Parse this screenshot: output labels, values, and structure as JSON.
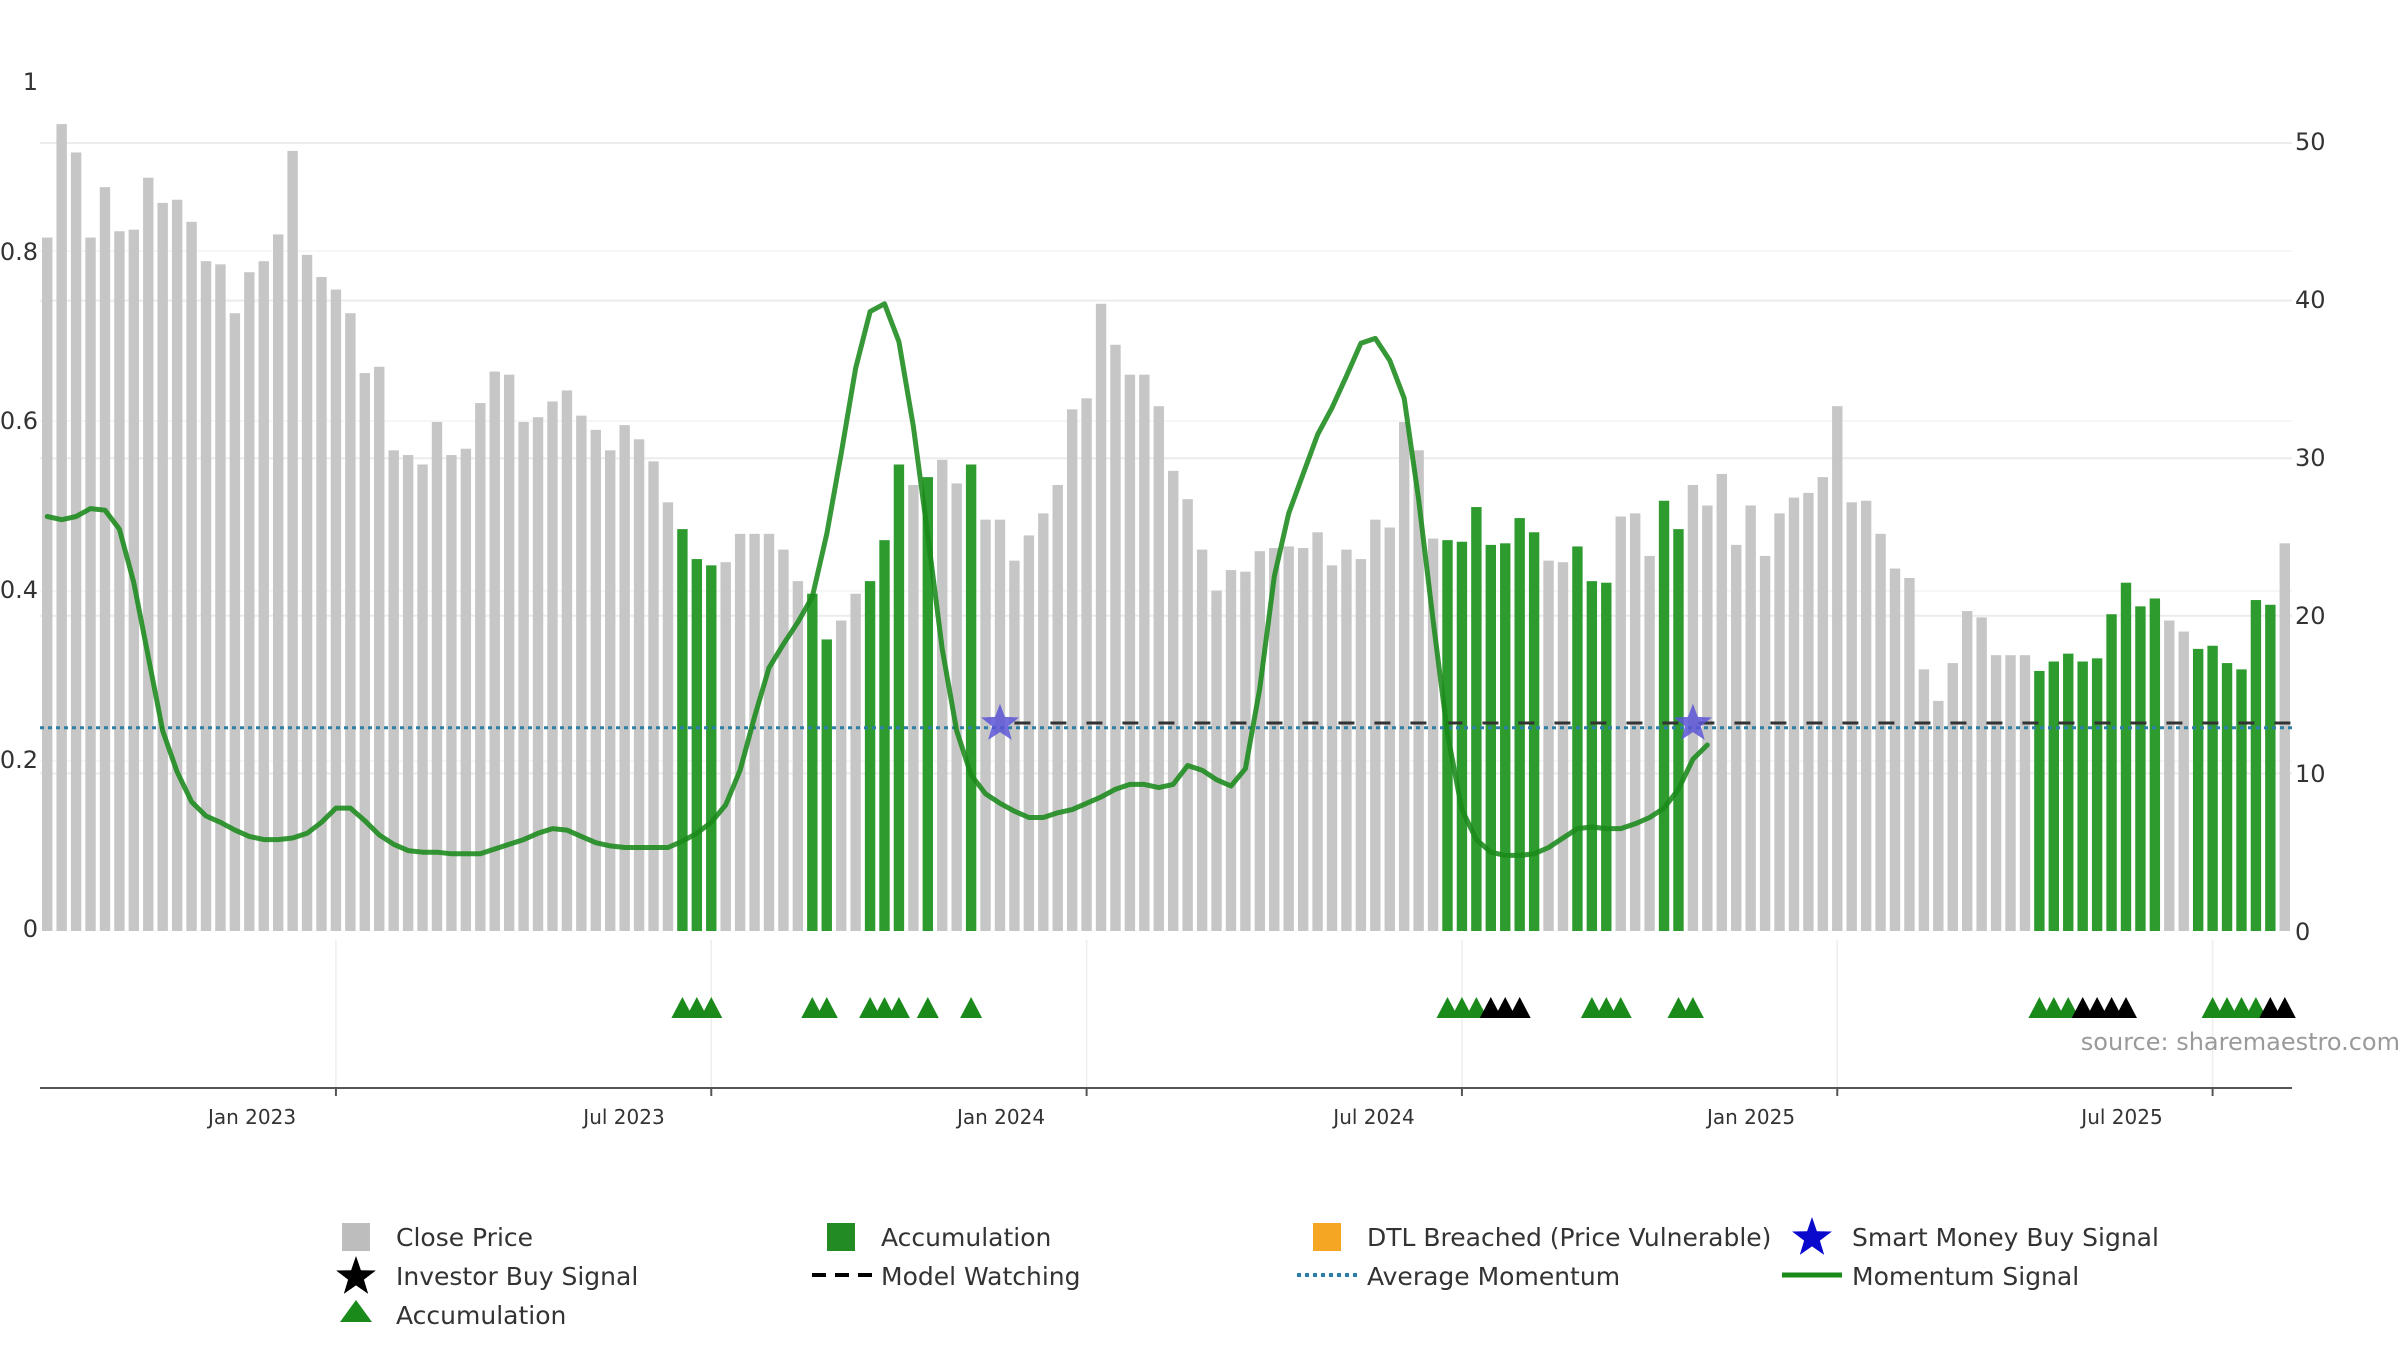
{
  "chart_data": {
    "type": "bar",
    "y_left_ticks": [
      "0",
      "0.2",
      "0.4",
      "0.6",
      "0.8",
      "1"
    ],
    "y_right_ticks": [
      "0",
      "10",
      "20",
      "30",
      "40",
      "50"
    ],
    "x_ticks": [
      "Jan 2023",
      "Jul 2023",
      "Jan 2024",
      "Jul 2024",
      "Jan 2025",
      "Jul 2025"
    ],
    "x_tick_weeks": [
      20,
      46,
      72,
      98,
      124,
      150
    ],
    "y_left_range": [
      0,
      1
    ],
    "y_right_range": [
      0,
      50
    ],
    "grid": true,
    "legend_position": "bottom",
    "source": "source: sharemaestro.com",
    "close_price": [
      44,
      51.2,
      49.4,
      44,
      47.2,
      44.4,
      44.5,
      47.8,
      46.2,
      46.4,
      45,
      42.5,
      42.3,
      39.2,
      41.8,
      42.5,
      44.2,
      49.5,
      42.9,
      41.5,
      40.7,
      39.2,
      35.4,
      35.8,
      30.5,
      30.2,
      29.6,
      32.3,
      30.2,
      30.6,
      33.5,
      35.5,
      35.3,
      32.3,
      32.6,
      33.6,
      34.3,
      32.7,
      31.8,
      30.5,
      32.1,
      31.2,
      29.8,
      27.2,
      25.5,
      23.6,
      23.2,
      23.4,
      25.2,
      25.2,
      25.2,
      24.2,
      22.2,
      21.4,
      18.5,
      19.7,
      21.4,
      22.2,
      24.8,
      29.6,
      28.3,
      28.8,
      29.9,
      28.4,
      29.6,
      26.1,
      26.1,
      23.5,
      25.1,
      26.5,
      28.3,
      33.1,
      33.8,
      39.8,
      37.2,
      35.3,
      35.3,
      33.3,
      29.2,
      27.4,
      24.2,
      21.6,
      22.9,
      22.8,
      24.1,
      24.3,
      24.4,
      24.3,
      25.3,
      23.2,
      24.2,
      23.6,
      26.1,
      25.6,
      32.3,
      30.5,
      24.9,
      24.8,
      24.7,
      26.9,
      24.5,
      24.6,
      26.2,
      25.3,
      23.5,
      23.4,
      24.4,
      22.2,
      22.1,
      26.3,
      26.5,
      23.8,
      27.3,
      25.5,
      28.3,
      27,
      29,
      24.5,
      27,
      23.8,
      26.5,
      27.5,
      27.8,
      28.8,
      33.3,
      27.2,
      27.3,
      25.2,
      23,
      22.4,
      16.6,
      14.6,
      17,
      20.3,
      19.9,
      17.5,
      17.5,
      17.5,
      16.5,
      17.1,
      17.6,
      17.1,
      17.3,
      20.1,
      22.1,
      20.6,
      21.1,
      19.7,
      19,
      17.9,
      18.1,
      17,
      16.6,
      21,
      20.7,
      24.6
    ],
    "accumulation_bar_weeks": [
      44,
      45,
      46,
      53,
      54,
      57,
      58,
      59,
      61,
      64,
      97,
      98,
      99,
      100,
      101,
      102,
      103,
      106,
      107,
      108,
      112,
      113,
      138,
      139,
      140,
      141,
      142,
      143,
      144,
      145,
      146,
      149,
      150,
      151,
      152,
      153,
      154
    ],
    "momentum_signal": [
      26.3,
      26.1,
      26.3,
      26.8,
      26.7,
      25.5,
      22.1,
      17.4,
      12.7,
      10.1,
      8.2,
      7.3,
      6.9,
      6.4,
      6,
      5.8,
      5.8,
      5.9,
      6.2,
      6.9,
      7.8,
      7.8,
      7,
      6.1,
      5.5,
      5.1,
      5,
      5,
      4.9,
      4.9,
      4.9,
      5.2,
      5.5,
      5.8,
      6.2,
      6.5,
      6.4,
      6,
      5.6,
      5.4,
      5.3,
      5.3,
      5.3,
      5.3,
      5.7,
      6.2,
      6.9,
      8,
      10.2,
      13.6,
      16.7,
      18.2,
      19.6,
      21.2,
      25.2,
      30.3,
      35.7,
      39.3,
      39.8,
      37.4,
      32,
      25.1,
      17.9,
      12.7,
      9.9,
      8.7,
      8.1,
      7.6,
      7.2,
      7.2,
      7.5,
      7.7,
      8.1,
      8.5,
      9,
      9.3,
      9.3,
      9.1,
      9.3,
      10.5,
      10.2,
      9.6,
      9.2,
      10.3,
      15.4,
      22.5,
      26.5,
      29,
      31.5,
      33.2,
      35.2,
      37.3,
      37.6,
      36.2,
      33.8,
      27.4,
      19.7,
      12.5,
      7.7,
      5.8,
      5,
      4.8,
      4.8,
      4.9,
      5.3,
      5.9,
      6.5,
      6.6,
      6.5,
      6.5,
      6.8,
      7.2,
      7.8,
      9,
      10.9,
      11.8
    ],
    "average_momentum": 12.9,
    "model_watching_start_week": 67,
    "model_watching_level": 13.2,
    "smart_money_buy_weeks": [
      66,
      114
    ],
    "accumulation_marker_weeks": [
      44,
      45,
      46,
      53,
      54,
      57,
      58,
      59,
      61,
      64,
      97,
      98,
      99,
      107,
      108,
      109,
      113,
      114,
      138,
      139,
      140,
      150,
      151,
      152,
      153
    ],
    "investor_buy_marker_weeks": [
      100,
      101,
      102,
      141,
      142,
      143,
      144,
      154,
      155
    ],
    "colors": {
      "close_price": "#c6c6c6",
      "accumulation": "#2e9b2e",
      "dtl_breached": "#f5a623",
      "smart_money": "#5a55d6",
      "investor_buy": "#000000",
      "momentum": "#1a8a1a",
      "average_momentum": "#2f7ea8",
      "model_watching": "#333333"
    },
    "legend": [
      {
        "label": "Close Price",
        "marker": "square-icon",
        "color": "#bdbdbd"
      },
      {
        "label": "Accumulation",
        "marker": "square-icon",
        "color": "#238b23"
      },
      {
        "label": "DTL Breached (Price Vulnerable)",
        "marker": "square-icon",
        "color": "#f5a623"
      },
      {
        "label": "Smart Money Buy Signal",
        "marker": "star-icon",
        "color": "#0a0acc"
      },
      {
        "label": "Investor Buy Signal",
        "marker": "star-icon",
        "color": "#000000"
      },
      {
        "label": "Model Watching",
        "marker": "dashed-line-icon",
        "color": "#000000"
      },
      {
        "label": "Average Momentum",
        "marker": "dotted-line-icon",
        "color": "#2f7ea8"
      },
      {
        "label": "Momentum Signal",
        "marker": "solid-line-icon",
        "color": "#1a8a1a"
      },
      {
        "label": "Accumulation",
        "marker": "triangle-icon",
        "color": "#1a8a1a"
      }
    ]
  }
}
